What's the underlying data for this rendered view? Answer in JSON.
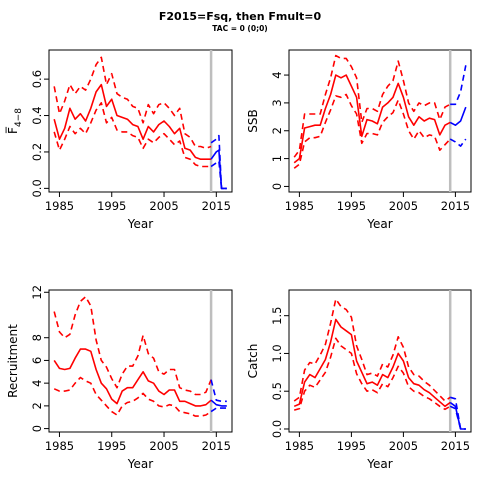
{
  "title": "F2015=Fsq, then Fmult=0",
  "subtitle": "TAC = 0 (0;0)",
  "colors": {
    "historic": "#ff0000",
    "projection": "#0000ff",
    "marker": "#bebebe",
    "axis": "#000000"
  },
  "chart_data": [
    {
      "type": "line",
      "ylabel": "F̅",
      "ylabel_sub": "4−8",
      "xlabel": "Year",
      "xlim": [
        1983,
        2018
      ],
      "ylim": [
        -0.02,
        0.76
      ],
      "xticks": [
        1985,
        1995,
        2005,
        2015
      ],
      "yticks": [
        0.0,
        0.2,
        0.4,
        0.6
      ],
      "yticklabels": [
        "0.0",
        "0.2",
        "0.4",
        "0.6"
      ],
      "marker_year": 2014,
      "historic": {
        "x": [
          1984,
          1985,
          1986,
          1987,
          1988,
          1989,
          1990,
          1991,
          1992,
          1993,
          1994,
          1995,
          1996,
          1997,
          1998,
          1999,
          2000,
          2001,
          2002,
          2003,
          2004,
          2005,
          2006,
          2007,
          2008,
          2009,
          2010,
          2011,
          2012,
          2013,
          2014
        ],
        "estimate": [
          0.38,
          0.27,
          0.33,
          0.44,
          0.38,
          0.41,
          0.37,
          0.44,
          0.53,
          0.57,
          0.45,
          0.49,
          0.4,
          0.39,
          0.38,
          0.35,
          0.34,
          0.27,
          0.34,
          0.31,
          0.35,
          0.37,
          0.34,
          0.3,
          0.33,
          0.22,
          0.21,
          0.17,
          0.16,
          0.16,
          0.16
        ],
        "lower": [
          0.31,
          0.21,
          0.27,
          0.34,
          0.3,
          0.33,
          0.3,
          0.36,
          0.43,
          0.47,
          0.36,
          0.39,
          0.32,
          0.31,
          0.31,
          0.29,
          0.28,
          0.22,
          0.27,
          0.25,
          0.28,
          0.3,
          0.27,
          0.24,
          0.26,
          0.17,
          0.16,
          0.13,
          0.12,
          0.12,
          0.12
        ],
        "upper": [
          0.56,
          0.41,
          0.48,
          0.57,
          0.52,
          0.56,
          0.54,
          0.6,
          0.68,
          0.72,
          0.57,
          0.63,
          0.52,
          0.5,
          0.49,
          0.45,
          0.44,
          0.36,
          0.46,
          0.41,
          0.46,
          0.47,
          0.44,
          0.4,
          0.44,
          0.3,
          0.28,
          0.23,
          0.23,
          0.22,
          0.23
        ]
      },
      "projection": {
        "x": [
          2014,
          2015,
          2015.5,
          2016,
          2017
        ],
        "estimate": [
          0.16,
          0.2,
          0.21,
          0.0,
          0.0
        ],
        "lower": [
          0.12,
          0.14,
          0.15,
          0.0,
          0.0
        ],
        "upper": [
          0.25,
          0.27,
          0.29,
          0.0,
          0.0
        ]
      }
    },
    {
      "type": "line",
      "ylabel": "SSB",
      "xlabel": "Year",
      "xlim": [
        1983,
        2018
      ],
      "ylim": [
        -0.2,
        4.9
      ],
      "xticks": [
        1985,
        1995,
        2005,
        2015
      ],
      "yticks": [
        0,
        1,
        2,
        3,
        4
      ],
      "yticklabels": [
        "0",
        "1",
        "2",
        "3",
        "4"
      ],
      "marker_year": 2014,
      "historic": {
        "x": [
          1984,
          1985,
          1986,
          1987,
          1988,
          1989,
          1990,
          1991,
          1992,
          1993,
          1994,
          1995,
          1996,
          1997,
          1998,
          1999,
          2000,
          2001,
          2002,
          2003,
          2004,
          2005,
          2006,
          2007,
          2008,
          2009,
          2010,
          2011,
          2012,
          2013,
          2014
        ],
        "estimate": [
          0.85,
          1.0,
          2.1,
          2.15,
          2.2,
          2.2,
          2.8,
          3.3,
          4.0,
          3.9,
          4.0,
          3.6,
          3.2,
          1.8,
          2.4,
          2.35,
          2.25,
          2.85,
          3.0,
          3.2,
          3.7,
          3.2,
          2.5,
          2.2,
          2.5,
          2.35,
          2.45,
          2.4,
          1.85,
          2.2,
          2.3
        ],
        "lower": [
          0.65,
          0.8,
          1.6,
          1.75,
          1.75,
          1.8,
          2.3,
          2.75,
          3.25,
          3.2,
          3.3,
          2.9,
          2.6,
          1.55,
          1.9,
          1.9,
          1.85,
          2.3,
          2.5,
          2.65,
          3.1,
          2.6,
          2.0,
          1.7,
          2.0,
          1.75,
          1.85,
          1.8,
          1.3,
          1.5,
          1.7
        ],
        "upper": [
          1.05,
          1.3,
          2.6,
          2.6,
          2.6,
          2.6,
          3.3,
          3.9,
          4.7,
          4.6,
          4.6,
          4.3,
          3.9,
          2.3,
          2.8,
          2.8,
          2.7,
          3.3,
          3.6,
          3.8,
          4.5,
          3.8,
          3.0,
          2.7,
          3.0,
          2.9,
          3.0,
          3.0,
          2.4,
          2.85,
          2.95
        ]
      },
      "projection": {
        "x": [
          2014,
          2015,
          2016,
          2017
        ],
        "estimate": [
          2.3,
          2.2,
          2.35,
          2.85
        ],
        "lower": [
          1.7,
          1.6,
          1.45,
          1.7
        ],
        "upper": [
          2.95,
          2.95,
          3.4,
          4.35
        ]
      }
    },
    {
      "type": "line",
      "ylabel": "Recruitment",
      "xlabel": "Year",
      "xlim": [
        1983,
        2018
      ],
      "ylim": [
        -0.3,
        12.2
      ],
      "xticks": [
        1985,
        1995,
        2005,
        2015
      ],
      "yticks": [
        0,
        2,
        4,
        6,
        8,
        12
      ],
      "yticklabels": [
        "0",
        "2",
        "4",
        "6",
        "8",
        "12"
      ],
      "marker_year": 2014,
      "historic": {
        "x": [
          1984,
          1985,
          1986,
          1987,
          1988,
          1989,
          1990,
          1991,
          1992,
          1993,
          1994,
          1995,
          1996,
          1997,
          1998,
          1999,
          2000,
          2001,
          2002,
          2003,
          2004,
          2005,
          2006,
          2007,
          2008,
          2009,
          2010,
          2011,
          2012,
          2013,
          2014
        ],
        "estimate": [
          6.0,
          5.3,
          5.2,
          5.3,
          6.2,
          7.0,
          7.0,
          6.8,
          5.2,
          4.0,
          3.5,
          2.6,
          2.2,
          3.3,
          3.6,
          3.6,
          4.3,
          5.0,
          4.2,
          4.0,
          3.3,
          3.0,
          3.4,
          3.4,
          2.4,
          2.4,
          2.2,
          2.0,
          2.0,
          2.1,
          2.5
        ],
        "lower": [
          3.5,
          3.3,
          3.3,
          3.4,
          4.0,
          4.5,
          4.2,
          4.0,
          3.0,
          2.5,
          2.0,
          1.5,
          1.2,
          2.0,
          2.3,
          2.4,
          2.7,
          3.1,
          2.6,
          2.4,
          2.0,
          1.9,
          2.1,
          2.0,
          1.5,
          1.4,
          1.3,
          1.1,
          1.1,
          1.2,
          1.5
        ],
        "upper": [
          10.3,
          8.5,
          8.0,
          8.3,
          10.0,
          11.2,
          11.6,
          10.8,
          7.8,
          6.0,
          5.4,
          4.4,
          3.6,
          4.8,
          5.5,
          5.5,
          6.4,
          8.2,
          6.6,
          6.2,
          5.0,
          4.8,
          5.2,
          5.2,
          3.6,
          3.4,
          3.3,
          3.0,
          3.0,
          3.2,
          4.3
        ]
      },
      "projection": {
        "x": [
          2014,
          2015,
          2016,
          2017
        ],
        "estimate": [
          2.5,
          2.1,
          2.0,
          2.0
        ],
        "lower": [
          1.5,
          1.8,
          1.8,
          1.8
        ],
        "upper": [
          4.3,
          2.5,
          2.4,
          2.4
        ]
      }
    },
    {
      "type": "line",
      "ylabel": "Catch",
      "xlabel": "Year",
      "xlim": [
        1983,
        2018
      ],
      "ylim": [
        -0.04,
        1.84
      ],
      "xticks": [
        1985,
        1995,
        2005,
        2015
      ],
      "yticks": [
        0.0,
        0.5,
        1.0,
        1.5
      ],
      "yticklabels": [
        "0.0",
        "0.5",
        "1.0",
        "1.5"
      ],
      "marker_year": 2014,
      "historic": {
        "x": [
          1984,
          1985,
          1986,
          1987,
          1988,
          1989,
          1990,
          1991,
          1992,
          1993,
          1994,
          1995,
          1996,
          1997,
          1998,
          1999,
          2000,
          2001,
          2002,
          2003,
          2004,
          2005,
          2006,
          2007,
          2008,
          2009,
          2010,
          2011,
          2012,
          2013,
          2014
        ],
        "estimate": [
          0.3,
          0.33,
          0.62,
          0.72,
          0.68,
          0.8,
          0.92,
          1.15,
          1.45,
          1.35,
          1.3,
          1.25,
          0.9,
          0.75,
          0.6,
          0.62,
          0.58,
          0.72,
          0.68,
          0.82,
          1.0,
          0.9,
          0.68,
          0.6,
          0.58,
          0.52,
          0.48,
          0.42,
          0.36,
          0.3,
          0.35
        ],
        "lower": [
          0.25,
          0.27,
          0.5,
          0.58,
          0.55,
          0.65,
          0.75,
          0.95,
          1.2,
          1.1,
          1.05,
          1.0,
          0.73,
          0.6,
          0.5,
          0.52,
          0.48,
          0.6,
          0.56,
          0.68,
          0.83,
          0.74,
          0.56,
          0.5,
          0.48,
          0.43,
          0.4,
          0.35,
          0.3,
          0.26,
          0.3
        ],
        "upper": [
          0.37,
          0.42,
          0.78,
          0.88,
          0.86,
          0.98,
          1.12,
          1.4,
          1.72,
          1.62,
          1.58,
          1.48,
          1.1,
          0.92,
          0.72,
          0.74,
          0.7,
          0.86,
          0.82,
          0.98,
          1.22,
          1.08,
          0.82,
          0.72,
          0.7,
          0.63,
          0.58,
          0.51,
          0.44,
          0.37,
          0.42
        ]
      },
      "projection": {
        "x": [
          2014,
          2015,
          2016,
          2017
        ],
        "estimate": [
          0.35,
          0.3,
          0.0,
          0.0
        ],
        "lower": [
          0.3,
          0.27,
          0.0,
          0.0
        ],
        "upper": [
          0.42,
          0.4,
          0.0,
          0.0
        ]
      }
    }
  ]
}
